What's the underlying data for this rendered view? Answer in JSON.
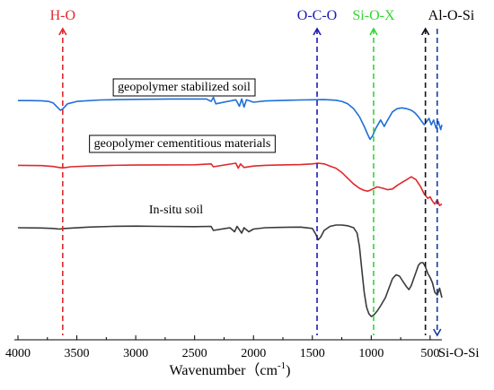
{
  "chart_data": {
    "type": "line",
    "xlabel": "Wavenumber（cm",
    "xlabel_sup": "-1",
    "xlim": [
      4000,
      400
    ],
    "x_ticks": [
      4000,
      3500,
      3000,
      2500,
      2000,
      1500,
      1000,
      500
    ],
    "grid": false,
    "series": [
      {
        "name": "geopolymer stabilized soil",
        "color": "#1f6fd8",
        "label_box": true,
        "points": [
          [
            4000,
            0.4
          ],
          [
            3900,
            0.4
          ],
          [
            3800,
            0.41
          ],
          [
            3740,
            0.45
          ],
          [
            3700,
            0.55
          ],
          [
            3660,
            0.85
          ],
          [
            3640,
            1.0
          ],
          [
            3620,
            0.92
          ],
          [
            3580,
            0.6
          ],
          [
            3500,
            0.45
          ],
          [
            3300,
            0.36
          ],
          [
            3000,
            0.32
          ],
          [
            2700,
            0.3
          ],
          [
            2400,
            0.3
          ],
          [
            2360,
            0.45
          ],
          [
            2340,
            0.2
          ],
          [
            2320,
            0.6
          ],
          [
            2150,
            0.35
          ],
          [
            2120,
            0.75
          ],
          [
            2100,
            0.3
          ],
          [
            2080,
            0.8
          ],
          [
            2060,
            0.35
          ],
          [
            2000,
            0.5
          ],
          [
            1900,
            0.42
          ],
          [
            1800,
            0.4
          ],
          [
            1700,
            0.38
          ],
          [
            1600,
            0.36
          ],
          [
            1500,
            0.35
          ],
          [
            1400,
            0.34
          ],
          [
            1300,
            0.38
          ],
          [
            1250,
            0.45
          ],
          [
            1200,
            0.6
          ],
          [
            1150,
            0.9
          ],
          [
            1100,
            1.4
          ],
          [
            1060,
            2.0
          ],
          [
            1030,
            2.5
          ],
          [
            1010,
            2.8
          ],
          [
            990,
            2.6
          ],
          [
            960,
            2.1
          ],
          [
            920,
            1.6
          ],
          [
            890,
            2.0
          ],
          [
            860,
            1.6
          ],
          [
            820,
            1.1
          ],
          [
            780,
            0.9
          ],
          [
            740,
            0.85
          ],
          [
            700,
            0.9
          ],
          [
            660,
            1.0
          ],
          [
            630,
            1.15
          ],
          [
            600,
            1.4
          ],
          [
            570,
            1.7
          ],
          [
            550,
            1.9
          ],
          [
            530,
            1.7
          ],
          [
            510,
            1.5
          ],
          [
            490,
            1.9
          ],
          [
            470,
            1.6
          ],
          [
            450,
            2.1
          ],
          [
            430,
            1.7
          ],
          [
            410,
            2.2
          ],
          [
            400,
            1.9
          ]
        ]
      },
      {
        "name": "geopolymer cementitious materials",
        "color": "#e0282c",
        "label_box": true,
        "points": [
          [
            4000,
            0.4
          ],
          [
            3800,
            0.42
          ],
          [
            3700,
            0.48
          ],
          [
            3650,
            0.55
          ],
          [
            3620,
            0.58
          ],
          [
            3550,
            0.5
          ],
          [
            3400,
            0.45
          ],
          [
            3200,
            0.4
          ],
          [
            3000,
            0.38
          ],
          [
            2800,
            0.37
          ],
          [
            2500,
            0.36
          ],
          [
            2360,
            0.3
          ],
          [
            2340,
            0.5
          ],
          [
            2150,
            0.25
          ],
          [
            2130,
            0.6
          ],
          [
            2110,
            0.3
          ],
          [
            2080,
            0.55
          ],
          [
            2000,
            0.45
          ],
          [
            1900,
            0.4
          ],
          [
            1800,
            0.38
          ],
          [
            1700,
            0.36
          ],
          [
            1600,
            0.35
          ],
          [
            1500,
            0.3
          ],
          [
            1450,
            0.25
          ],
          [
            1400,
            0.3
          ],
          [
            1350,
            0.45
          ],
          [
            1300,
            0.6
          ],
          [
            1250,
            0.9
          ],
          [
            1200,
            1.3
          ],
          [
            1150,
            1.7
          ],
          [
            1100,
            2.0
          ],
          [
            1060,
            2.15
          ],
          [
            1030,
            2.2
          ],
          [
            1000,
            2.1
          ],
          [
            950,
            1.9
          ],
          [
            900,
            2.0
          ],
          [
            860,
            2.1
          ],
          [
            820,
            2.05
          ],
          [
            780,
            1.8
          ],
          [
            740,
            1.6
          ],
          [
            700,
            1.4
          ],
          [
            660,
            1.2
          ],
          [
            620,
            1.4
          ],
          [
            580,
            1.9
          ],
          [
            550,
            2.4
          ],
          [
            520,
            2.7
          ],
          [
            500,
            2.6
          ],
          [
            480,
            2.9
          ],
          [
            460,
            3.1
          ],
          [
            440,
            2.8
          ],
          [
            420,
            3.2
          ],
          [
            400,
            3.1
          ]
        ]
      },
      {
        "name": "In-situ soil",
        "color": "#3a3a3a",
        "label_box": false,
        "points": [
          [
            4000,
            0.4
          ],
          [
            3800,
            0.42
          ],
          [
            3700,
            0.45
          ],
          [
            3650,
            0.5
          ],
          [
            3600,
            0.45
          ],
          [
            3400,
            0.35
          ],
          [
            3200,
            0.3
          ],
          [
            3000,
            0.28
          ],
          [
            2800,
            0.3
          ],
          [
            2500,
            0.32
          ],
          [
            2360,
            0.3
          ],
          [
            2340,
            0.6
          ],
          [
            2200,
            0.4
          ],
          [
            2160,
            0.7
          ],
          [
            2140,
            0.3
          ],
          [
            2100,
            0.8
          ],
          [
            2080,
            0.4
          ],
          [
            2040,
            0.7
          ],
          [
            2000,
            0.5
          ],
          [
            1900,
            0.4
          ],
          [
            1800,
            0.38
          ],
          [
            1700,
            0.36
          ],
          [
            1600,
            0.35
          ],
          [
            1500,
            0.45
          ],
          [
            1470,
            0.9
          ],
          [
            1450,
            1.3
          ],
          [
            1430,
            1.1
          ],
          [
            1400,
            0.6
          ],
          [
            1350,
            0.3
          ],
          [
            1300,
            0.2
          ],
          [
            1250,
            0.2
          ],
          [
            1200,
            0.25
          ],
          [
            1150,
            0.4
          ],
          [
            1120,
            0.8
          ],
          [
            1100,
            1.8
          ],
          [
            1080,
            3.5
          ],
          [
            1060,
            5.2
          ],
          [
            1040,
            6.3
          ],
          [
            1020,
            6.8
          ],
          [
            1000,
            7.0
          ],
          [
            980,
            6.9
          ],
          [
            950,
            6.6
          ],
          [
            920,
            6.2
          ],
          [
            880,
            5.6
          ],
          [
            850,
            4.9
          ],
          [
            820,
            4.2
          ],
          [
            790,
            3.9
          ],
          [
            760,
            4.0
          ],
          [
            730,
            4.4
          ],
          [
            700,
            4.8
          ],
          [
            680,
            5.0
          ],
          [
            660,
            4.7
          ],
          [
            640,
            4.2
          ],
          [
            620,
            3.7
          ],
          [
            600,
            3.2
          ],
          [
            580,
            3.0
          ],
          [
            560,
            3.0
          ],
          [
            540,
            3.3
          ],
          [
            520,
            3.8
          ],
          [
            500,
            4.1
          ],
          [
            480,
            4.5
          ],
          [
            460,
            5.2
          ],
          [
            440,
            5.4
          ],
          [
            420,
            4.9
          ],
          [
            400,
            5.6
          ]
        ]
      }
    ],
    "markers": [
      {
        "label": "H-O",
        "x": 3620,
        "color": "#e0282c"
      },
      {
        "label": "O-C-O",
        "x": 1460,
        "color": "#1b1bb5"
      },
      {
        "label": "Si-O-X",
        "x": 980,
        "color": "#33d633"
      },
      {
        "label": "Al-O-Si",
        "x": 540,
        "color": "#111122"
      },
      {
        "label": "Si-O-Si",
        "x": 440,
        "color": "#1b3a9e"
      }
    ]
  }
}
